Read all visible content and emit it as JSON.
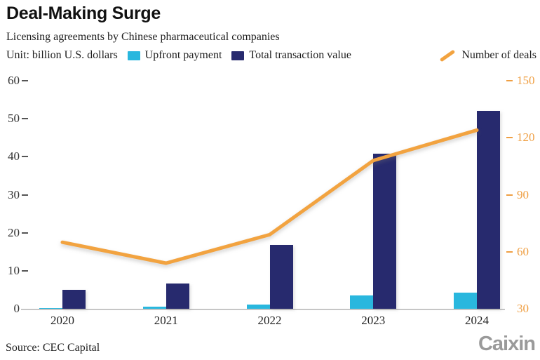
{
  "header": {
    "title": "Deal-Making Surge",
    "subtitle": "Licensing agreements by Chinese pharmaceutical companies",
    "unit_label": "Unit: billion U.S. dollars"
  },
  "legend": {
    "upfront_label": "Upfront payment",
    "total_label": "Total transaction value",
    "deals_label": "Number of deals"
  },
  "colors": {
    "upfront": "#29b7de",
    "total": "#272a6e",
    "deals_line": "#f2a340",
    "right_axis_text": "#ef9f43",
    "left_axis_text": "#333333",
    "baseline": "#c6c6c6"
  },
  "chart_data": {
    "type": "bar",
    "title": "Deal-Making Surge",
    "subtitle": "Licensing agreements by Chinese pharmaceutical companies",
    "unit": "billion U.S. dollars",
    "categories": [
      "2020",
      "2021",
      "2022",
      "2023",
      "2024"
    ],
    "series": [
      {
        "name": "Upfront payment",
        "type": "bar",
        "axis": "left",
        "values": [
          0.1,
          0.5,
          1.2,
          3.5,
          4.2
        ]
      },
      {
        "name": "Total transaction value",
        "type": "bar",
        "axis": "left",
        "values": [
          4.9,
          6.7,
          16.8,
          40.8,
          52.0
        ]
      },
      {
        "name": "Number of deals",
        "type": "line",
        "axis": "right",
        "values": [
          65,
          54,
          69,
          108,
          124
        ]
      }
    ],
    "left_axis": {
      "ticks": [
        0,
        10,
        20,
        30,
        40,
        50,
        60
      ],
      "range": [
        0,
        60
      ]
    },
    "right_axis": {
      "ticks": [
        30,
        60,
        90,
        120,
        150
      ],
      "range": [
        30,
        150
      ]
    },
    "grid": false,
    "legend_position": "top"
  },
  "footer": {
    "source": "Source: CEC Capital",
    "logo": "Caixin"
  }
}
